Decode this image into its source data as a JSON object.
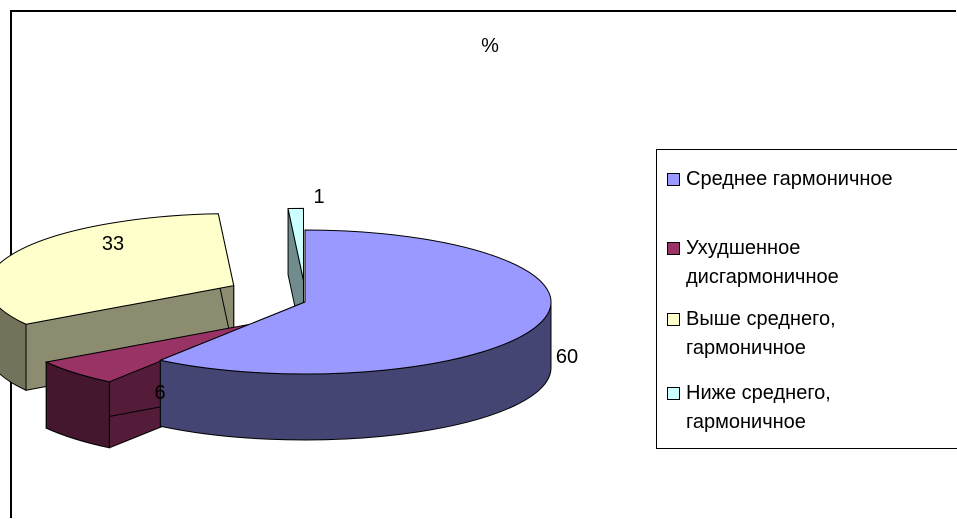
{
  "chart_data": {
    "type": "pie",
    "title": "%",
    "labels": [
      "Среднее гармоничное",
      "Ухудшенное дисгармоничное",
      "Выше среднего, гармоничное",
      "Ниже среднего, гармоничное"
    ],
    "values": [
      60,
      6,
      33,
      1
    ],
    "data_labels": [
      "60",
      "6",
      "33",
      "1"
    ],
    "colors": [
      "#9999FF",
      "#993366",
      "#FFFFCC",
      "#CCFFFF"
    ],
    "exploded": true,
    "three_d": true,
    "legend_position": "right"
  },
  "legend": {
    "items": [
      {
        "label_lines": [
          "Среднее гармоничное"
        ],
        "color": "#9999FF"
      },
      {
        "label_lines": [
          "Ухудшенное",
          "дисгармоничное"
        ],
        "color": "#993366"
      },
      {
        "label_lines": [
          "Выше среднего,",
          "гармоничное"
        ],
        "color": "#FFFFCC"
      },
      {
        "label_lines": [
          "Ниже среднего,",
          "гармоничное"
        ],
        "color": "#CCFFFF"
      }
    ]
  }
}
